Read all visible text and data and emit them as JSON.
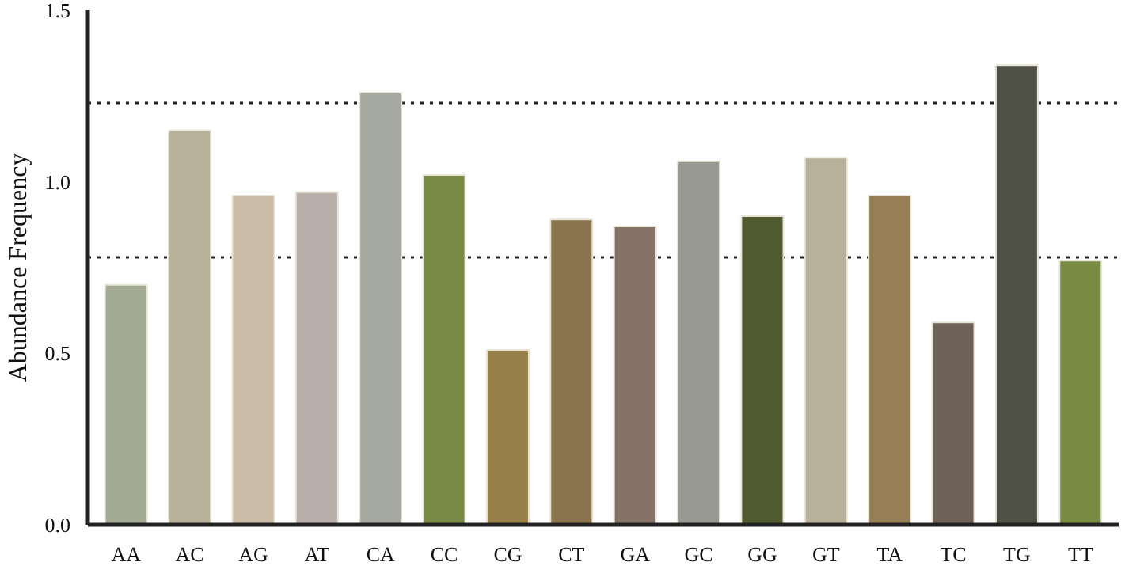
{
  "chart_data": {
    "type": "bar",
    "ylabel": "Abundance Frequency",
    "categories": [
      "AA",
      "AC",
      "AG",
      "AT",
      "CA",
      "CC",
      "CG",
      "CT",
      "GA",
      "GC",
      "GG",
      "GT",
      "TA",
      "TC",
      "TG",
      "TT"
    ],
    "values": [
      0.7,
      1.15,
      0.96,
      0.97,
      1.26,
      1.02,
      0.51,
      0.89,
      0.87,
      1.06,
      0.9,
      1.07,
      0.96,
      0.59,
      1.34,
      0.77
    ],
    "colors": [
      "#a3ab94",
      "#b7b19a",
      "#c9bba6",
      "#b9aea9",
      "#a6a99f",
      "#788a44",
      "#958147",
      "#8a744e",
      "#857367",
      "#9a9a94",
      "#4f5a2f",
      "#b8b19a",
      "#977f55",
      "#6e6158",
      "#4f5146",
      "#788b43"
    ],
    "ylim": [
      0,
      1.5
    ],
    "yticks": [
      {
        "value": 0,
        "label": "0.0"
      },
      {
        "value": 0.5,
        "label": "0.5"
      },
      {
        "value": 1,
        "label": "1.0"
      },
      {
        "value": 1.5,
        "label": "1.5"
      }
    ],
    "ref_lines": [
      {
        "axis": "y",
        "value": 1.23,
        "line_style": "dotted",
        "color": "#222222"
      },
      {
        "axis": "y",
        "value": 0.78,
        "line_style": "dotted",
        "color": "#222222"
      }
    ],
    "grid": false
  }
}
